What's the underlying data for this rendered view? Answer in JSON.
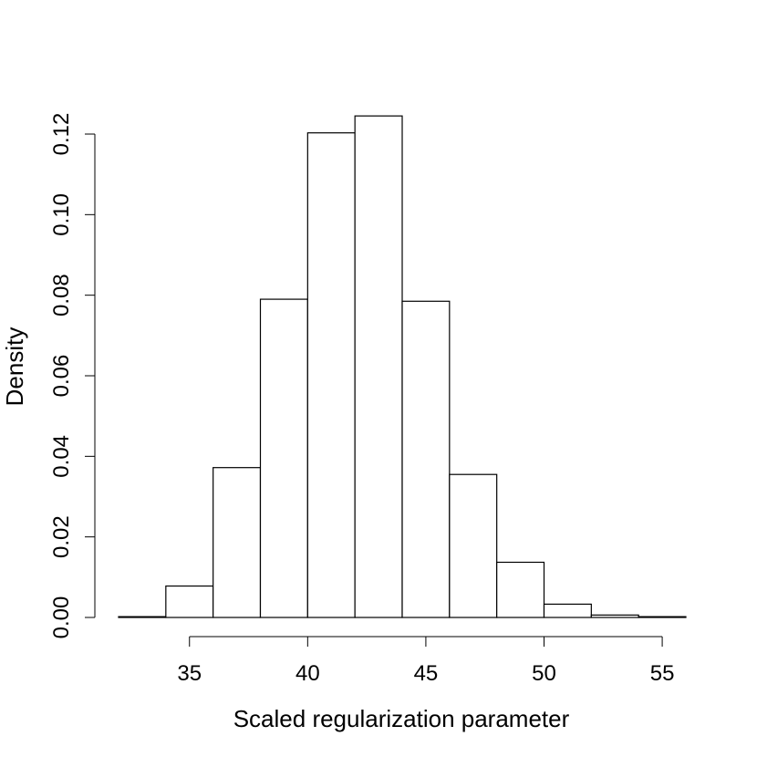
{
  "chart_data": {
    "type": "histogram",
    "xlabel": "Scaled regularization parameter",
    "ylabel": "Density",
    "xlim": [
      32,
      56
    ],
    "ylim": [
      0,
      0.125
    ],
    "x_ticks": [
      35,
      40,
      45,
      50,
      55
    ],
    "y_ticks": [
      0.0,
      0.02,
      0.04,
      0.06,
      0.08,
      0.1,
      0.12
    ],
    "y_tick_labels": [
      "0.00",
      "0.02",
      "0.04",
      "0.06",
      "0.08",
      "0.10",
      "0.12"
    ],
    "grid": false,
    "bins": [
      {
        "x0": 32,
        "x1": 34,
        "density": 0.0002
      },
      {
        "x0": 34,
        "x1": 36,
        "density": 0.0078
      },
      {
        "x0": 36,
        "x1": 38,
        "density": 0.0372
      },
      {
        "x0": 38,
        "x1": 40,
        "density": 0.079
      },
      {
        "x0": 40,
        "x1": 42,
        "density": 0.1203
      },
      {
        "x0": 42,
        "x1": 44,
        "density": 0.1245
      },
      {
        "x0": 44,
        "x1": 46,
        "density": 0.0785
      },
      {
        "x0": 46,
        "x1": 48,
        "density": 0.0355
      },
      {
        "x0": 48,
        "x1": 50,
        "density": 0.0137
      },
      {
        "x0": 50,
        "x1": 52,
        "density": 0.0033
      },
      {
        "x0": 52,
        "x1": 54,
        "density": 0.0006
      },
      {
        "x0": 54,
        "x1": 56,
        "density": 0.0002
      }
    ]
  }
}
